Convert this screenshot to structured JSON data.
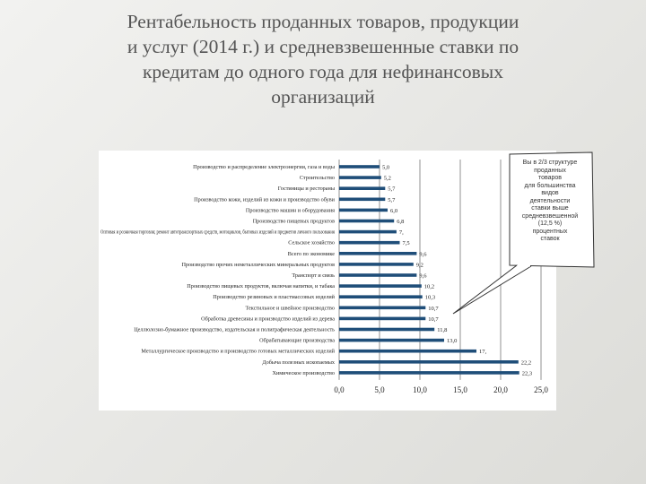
{
  "slide": {
    "title_lines": [
      "Рентабельность проданных товаров, продукции",
      "и услуг (2014 г.) и средневзвешенные ставки по",
      "кредитам до одного года для нефинансовых",
      "организаций"
    ],
    "callout_lines": [
      "Вы в 2/3 структуре",
      "проданных",
      "товаров",
      "для большинства",
      "видов",
      "деятельности",
      "ставки выше",
      "средневзвешенной",
      "(12,5 %)",
      "процентных",
      "ставок"
    ]
  },
  "chart_data": {
    "type": "bar",
    "orientation": "horizontal",
    "categories": [
      "Производство и распределение электроэнергии, газа и воды",
      "Строительство",
      "Гостиницы и рестораны",
      "Производство кожи, изделий из кожи и производство обуви",
      "Производство машин и оборудования",
      "Производство пищевых продуктов",
      "Оптовая и розничная торговля; ремонт автотранспортных средств, мотоциклов, бытовых изделий и предметов личного пользования",
      "Сельское хозяйство",
      "Всего по экономике",
      "Производство прочих неметаллических минеральных продуктов",
      "Транспорт и связь",
      "Производство пищевых продуктов, включая напитки, и табака",
      "Производство резиновых и пластмассовых изделий",
      "Текстильное и швейное производство",
      "Обработка древесины и производство изделий из дерева",
      "Целлюлозно-бумажное производство, издательская и полиграфическая деятельность",
      "Обрабатывающие производства",
      "Металлургическое производство и производство готовых металлических изделий",
      "Добыча полезных ископаемых",
      "Химическое производство"
    ],
    "values": [
      5.0,
      5.2,
      5.7,
      5.7,
      6.0,
      6.8,
      7.1,
      7.5,
      9.6,
      9.2,
      9.6,
      10.2,
      10.3,
      10.7,
      10.7,
      11.8,
      13.0,
      17.0,
      22.2,
      22.3
    ],
    "value_labels": [
      "5,0",
      "5,2",
      "5,7",
      "5,7",
      "6,0",
      "6,8",
      "7,",
      "7,5",
      "9,6",
      "9,2",
      "9,6",
      "10,2",
      "10,3",
      "10,7",
      "10,7",
      "11,8",
      "13,0",
      "17,",
      "22,2",
      "22,3"
    ],
    "xlim": [
      0,
      25
    ],
    "xticks": [
      "0,0",
      "5,0",
      "10,0",
      "15,0",
      "20,0",
      "25,0"
    ],
    "grid": true,
    "colors": {
      "bar": "#1f4e79"
    }
  }
}
